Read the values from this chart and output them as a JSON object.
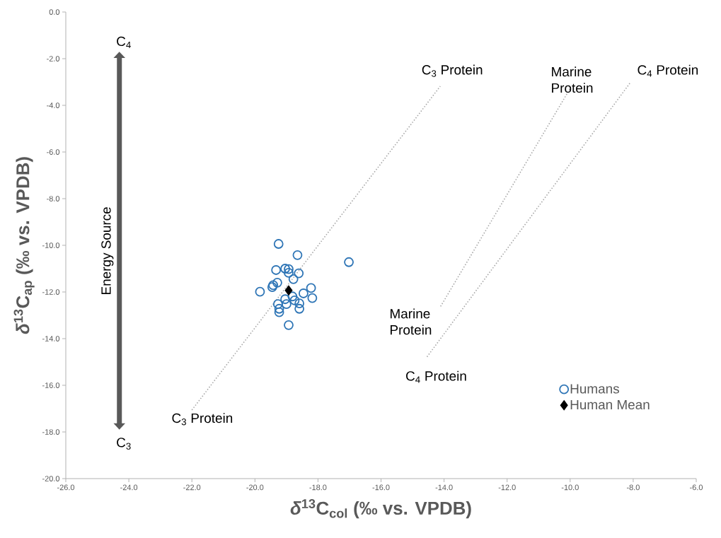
{
  "chart_data": {
    "type": "scatter",
    "xlabel": "*δ*$^{13}$C$_{col}$  (‰ vs. VPDB)",
    "ylabel": "*δ*$^{13}$C$_{ap}$  (‰ vs. VPDB)",
    "xlim": [
      -26,
      -6
    ],
    "ylim": [
      -20,
      0
    ],
    "xticks": [
      {
        "value": -26,
        "label": "-26.0"
      },
      {
        "value": -24,
        "label": "-24.0"
      },
      {
        "value": -22,
        "label": "-22.0"
      },
      {
        "value": -20,
        "label": "-20.0"
      },
      {
        "value": -18,
        "label": "-18.0"
      },
      {
        "value": -16,
        "label": "-16.0"
      },
      {
        "value": -14,
        "label": "-14.0"
      },
      {
        "value": -12,
        "label": "-12.0"
      },
      {
        "value": -10,
        "label": "-10.0"
      },
      {
        "value": -8,
        "label": "-8.0"
      },
      {
        "value": -6,
        "label": "-6.0"
      }
    ],
    "yticks": [
      {
        "value": -20,
        "label": "-20.0"
      },
      {
        "value": -18,
        "label": "-18.0"
      },
      {
        "value": -16,
        "label": "-16.0"
      },
      {
        "value": -14,
        "label": "-14.0"
      },
      {
        "value": -12,
        "label": "-12.0"
      },
      {
        "value": -10,
        "label": "-10.0"
      },
      {
        "value": -8,
        "label": "-8.0"
      },
      {
        "value": -6,
        "label": "-6.0"
      },
      {
        "value": -4,
        "label": "-4.0"
      },
      {
        "value": -2,
        "label": "-2.0"
      },
      {
        "value": 0,
        "label": "0.0"
      }
    ],
    "grid": false,
    "legend": "bottom right",
    "series": [
      {
        "type": "line",
        "color": "#a6a6a6",
        "line_style": "dotted",
        "marker": "none",
        "x": [
          -22.0,
          -14.12
        ],
        "values": [
          -17.06,
          -3.18
        ]
      },
      {
        "type": "line",
        "color": "#a6a6a6",
        "line_style": "dotted",
        "marker": "none",
        "x": [
          -14.11,
          -9.98
        ],
        "values": [
          -12.62,
          -3.23
        ]
      },
      {
        "type": "line",
        "color": "#a6a6a6",
        "line_style": "dotted",
        "marker": "none",
        "x": [
          -14.54,
          -8.1
        ],
        "values": [
          -14.78,
          -3.04
        ]
      },
      {
        "name": "Humans",
        "color": "#2e75b6",
        "marker": "circle",
        "x": [
          -19.25,
          -18.65,
          -17.02,
          -19.33,
          -19.04,
          -18.93,
          -18.93,
          -18.61,
          -18.78,
          -19.42,
          -19.29,
          -19.45,
          -19.84,
          -18.22,
          -18.46,
          -18.18,
          -18.81,
          -18.59,
          -18.59,
          -19.04,
          -19.0,
          -19.27,
          -19.23,
          -19.23,
          -18.93,
          -18.74
        ],
        "values": [
          -9.94,
          -10.42,
          -10.72,
          -11.06,
          -11.0,
          -11.02,
          -11.18,
          -11.2,
          -11.45,
          -11.71,
          -11.6,
          -11.79,
          -11.99,
          -11.83,
          -12.06,
          -12.26,
          -12.19,
          -12.49,
          -12.72,
          -12.31,
          -12.52,
          -12.52,
          -12.72,
          -12.87,
          -13.42,
          -12.36
        ]
      },
      {
        "name": "Human Mean",
        "color": "#000000",
        "marker": "diamond",
        "x": [
          -18.93
        ],
        "values": [
          -11.93
        ]
      }
    ],
    "annotations": [
      "C$_{3}$ Protein",
      "C$_{3}$ Protein",
      "Marine Protein",
      "Marine Protein",
      "C$_{4}$ Protein",
      "C$_{4}$ Protein",
      "C$_{4}$",
      "C$_{3}$",
      "Energy Source"
    ]
  }
}
